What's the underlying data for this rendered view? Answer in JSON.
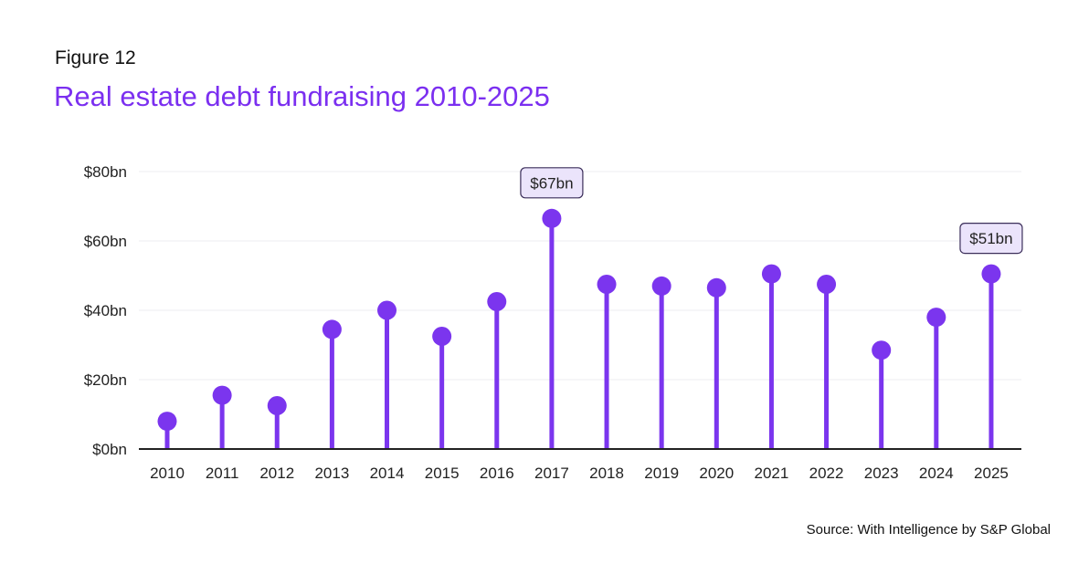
{
  "header": {
    "figure_label": "Figure 12",
    "title": "Real estate debt fundraising 2010-2025"
  },
  "footer": {
    "source": "Source: With Intelligence by S&P Global"
  },
  "colors": {
    "accent": "#7b2ff0",
    "lollipop": "#7b35ee",
    "callout_fill": "#ebe4fb",
    "callout_border": "#3b2e5a",
    "grid": "#ececf0",
    "axis": "#222222",
    "text": "#222222"
  },
  "chart_data": {
    "type": "lollipop",
    "title": "Real estate debt fundraising 2010-2025",
    "xlabel": "",
    "ylabel": "",
    "ylim": [
      0,
      80
    ],
    "yticks": [
      0,
      20,
      40,
      60,
      80
    ],
    "ytick_labels": [
      "$0bn",
      "$20bn",
      "$40bn",
      "$60bn",
      "$80bn"
    ],
    "grid": true,
    "categories": [
      "2010",
      "2011",
      "2012",
      "2013",
      "2014",
      "2015",
      "2016",
      "2017",
      "2018",
      "2019",
      "2020",
      "2021",
      "2022",
      "2023",
      "2024",
      "2025"
    ],
    "values": [
      8,
      15.5,
      12.5,
      34.5,
      40,
      32.5,
      42.5,
      66.5,
      47.5,
      47,
      46.5,
      50.5,
      47.5,
      28.5,
      38,
      50.5
    ],
    "annotations": [
      {
        "index": 7,
        "label": "$67bn"
      },
      {
        "index": 15,
        "label": "$51bn"
      }
    ]
  }
}
